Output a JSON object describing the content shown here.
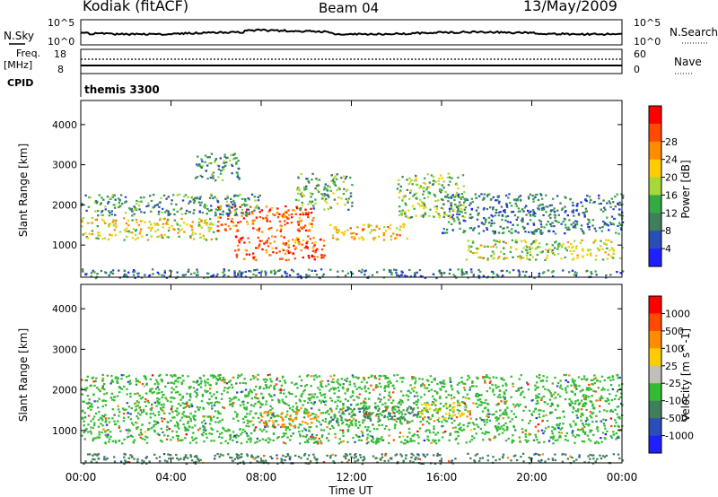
{
  "header": {
    "station": "Kodiak (fitACF)",
    "beam": "Beam 04",
    "date": "13/May/2009"
  },
  "strip_labels": {
    "nsky": "N.Sky",
    "nsky_top_tick": "10^5",
    "nsky_bottom_tick": "10^0",
    "nsearch": "N.Search",
    "nsearch_top_tick": "10^5",
    "nsearch_bottom_tick": "10^0",
    "freq_line1": "Freq.",
    "freq_line2": "[MHz]",
    "freq_top_tick": "18",
    "freq_bottom_tick": "8",
    "nave": "Nave",
    "nave_top_tick": "60",
    "nave_bottom_tick": "0",
    "cpid": "CPID",
    "cpid_value": "themis 3300"
  },
  "chart_data": [
    {
      "type": "heatmap",
      "panel": "power",
      "ylabel": "Slant Range [km]",
      "xlabel": "",
      "ylim": [
        200,
        4600
      ],
      "yticks": [
        1000,
        2000,
        3000,
        4000
      ],
      "xticks": [
        "00:00",
        "04:00",
        "08:00",
        "12:00",
        "16:00",
        "20:00",
        "00:00"
      ],
      "colorbar": {
        "label": "Power [dB]",
        "ticks": [
          "4",
          "8",
          "12",
          "16",
          "20",
          "24",
          "28"
        ],
        "colors": [
          "#1f1fff",
          "#2a4db8",
          "#3f7f5a",
          "#33aa44",
          "#a6d83a",
          "#ffcc00",
          "#ff8c00",
          "#ff4a00",
          "#ff0000"
        ]
      },
      "bands": [
        {
          "t0": 0.0,
          "t1": 6.0,
          "r0": 1150,
          "r1": 1700,
          "level": 20
        },
        {
          "t0": 6.0,
          "t1": 10.3,
          "r0": 1350,
          "r1": 2000,
          "level": 28
        },
        {
          "t0": 6.8,
          "t1": 10.8,
          "r0": 650,
          "r1": 1250,
          "level": 28
        },
        {
          "t0": 0.0,
          "t1": 8.0,
          "r0": 1750,
          "r1": 2300,
          "level": 12
        },
        {
          "t0": 9.5,
          "t1": 12.0,
          "r0": 1900,
          "r1": 2800,
          "level": 14
        },
        {
          "t0": 11.0,
          "t1": 14.5,
          "r0": 1150,
          "r1": 1550,
          "level": 22
        },
        {
          "t0": 14.0,
          "t1": 17.0,
          "r0": 1700,
          "r1": 2800,
          "level": 16
        },
        {
          "t0": 17.0,
          "t1": 24.0,
          "r0": 650,
          "r1": 1150,
          "level": 18
        },
        {
          "t0": 16.0,
          "t1": 24.0,
          "r0": 1300,
          "r1": 2300,
          "level": 10
        },
        {
          "t0": 5.0,
          "t1": 7.0,
          "r0": 2600,
          "r1": 3300,
          "level": 12
        },
        {
          "t0": 0.0,
          "t1": 24.0,
          "r0": 200,
          "r1": 420,
          "level": 10
        }
      ]
    },
    {
      "type": "heatmap",
      "panel": "velocity",
      "ylabel": "Slant Range [km]",
      "xlabel": "Time UT",
      "ylim": [
        200,
        4600
      ],
      "yticks": [
        1000,
        2000,
        3000,
        4000
      ],
      "xticks": [
        "00:00",
        "04:00",
        "08:00",
        "12:00",
        "16:00",
        "20:00",
        "00:00"
      ],
      "colorbar": {
        "label": "Velocity [m s^-1]",
        "ticks": [
          "1000",
          "500",
          "100",
          "25",
          "-25",
          "-100",
          "-500",
          "-1000"
        ],
        "colors": [
          "#1f1fff",
          "#2a4db8",
          "#3f7f5a",
          "#33bb33",
          "#c0c0b8",
          "#ffcc00",
          "#ff8c00",
          "#ff4a00",
          "#ff0000"
        ]
      },
      "bands": [
        {
          "t0": 0.0,
          "t1": 24.0,
          "r0": 700,
          "r1": 2400,
          "level": 25
        },
        {
          "t0": 11.0,
          "t1": 15.0,
          "r0": 1250,
          "r1": 1600,
          "level": 100
        },
        {
          "t0": 8.0,
          "t1": 10.5,
          "r0": 1100,
          "r1": 1500,
          "level": -300
        },
        {
          "t0": 15.0,
          "t1": 17.0,
          "r0": 1300,
          "r1": 1700,
          "level": -100
        },
        {
          "t0": 0.0,
          "t1": 24.0,
          "r0": 200,
          "r1": 450,
          "level": 100
        }
      ]
    }
  ]
}
